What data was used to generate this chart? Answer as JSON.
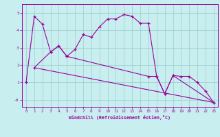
{
  "xlabel": "Windchill (Refroidissement éolien,°C)",
  "background_color": "#c8eef0",
  "line_color": "#990099",
  "grid_color": "#99cccc",
  "x_ticks": [
    0,
    1,
    2,
    3,
    4,
    5,
    6,
    7,
    8,
    9,
    10,
    11,
    12,
    13,
    14,
    15,
    16,
    17,
    18,
    19,
    20,
    21,
    22,
    23
  ],
  "y_ticks": [
    0,
    1,
    2,
    3,
    4,
    5
  ],
  "y_tick_labels": [
    "-0",
    "1",
    "2",
    "3",
    "4",
    "5"
  ],
  "ylim": [
    -0.4,
    5.5
  ],
  "xlim": [
    -0.5,
    23.5
  ],
  "series1_x": [
    0,
    1,
    2,
    3,
    4,
    5,
    6,
    7,
    8,
    9,
    10,
    11,
    12,
    13,
    14,
    15,
    16,
    17,
    18,
    19,
    20,
    21,
    22,
    23
  ],
  "series1_y": [
    1.0,
    4.8,
    4.35,
    2.75,
    3.1,
    2.5,
    2.9,
    3.75,
    3.6,
    4.2,
    4.65,
    4.65,
    4.9,
    4.8,
    4.4,
    4.4,
    1.35,
    0.35,
    1.4,
    1.35,
    1.35,
    1.0,
    0.5,
    -0.15
  ],
  "series2_x": [
    1,
    3,
    4,
    5,
    15,
    16,
    17,
    18,
    23
  ],
  "series2_y": [
    1.85,
    2.75,
    3.1,
    2.5,
    1.35,
    1.35,
    0.35,
    1.4,
    -0.15
  ],
  "series3_x": [
    1,
    23
  ],
  "series3_y": [
    1.85,
    -0.15
  ]
}
